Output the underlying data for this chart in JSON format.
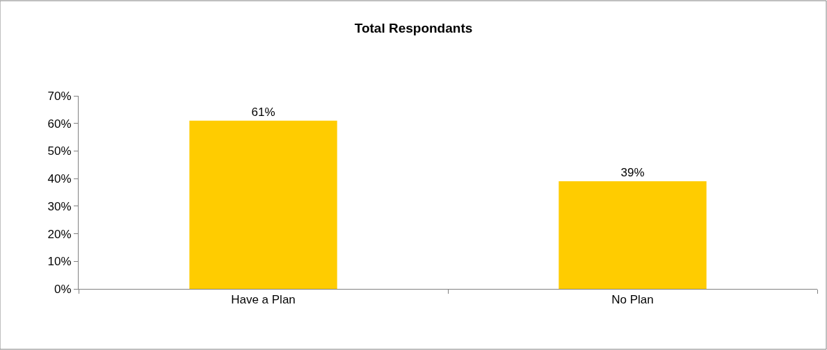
{
  "chart_data": {
    "type": "bar",
    "title": "Total Respondants",
    "categories": [
      "Have a Plan",
      "No Plan"
    ],
    "values": [
      61,
      39
    ],
    "value_labels": [
      "61%",
      "39%"
    ],
    "color": "#ffcc00",
    "ylim": [
      0,
      70
    ],
    "yticks": [
      {
        "value": 0,
        "label": "0%"
      },
      {
        "value": 10,
        "label": "10%"
      },
      {
        "value": 20,
        "label": "20%"
      },
      {
        "value": 30,
        "label": "30%"
      },
      {
        "value": 40,
        "label": "40%"
      },
      {
        "value": 50,
        "label": "50%"
      },
      {
        "value": 60,
        "label": "60%"
      },
      {
        "value": 70,
        "label": "70%"
      }
    ],
    "legend": false
  }
}
